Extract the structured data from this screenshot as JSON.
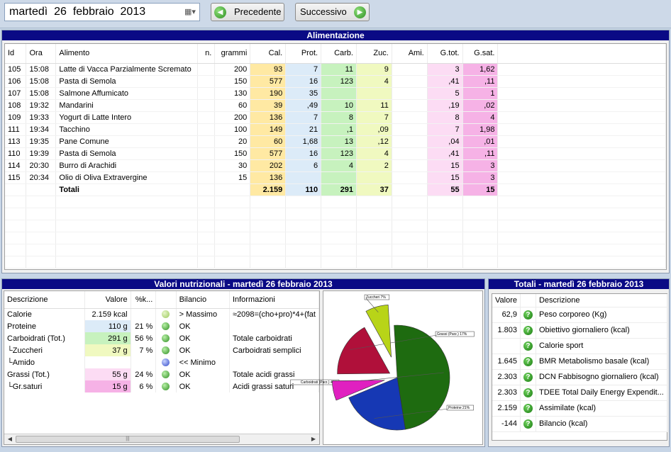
{
  "toolbar": {
    "date": "martedì  26  febbraio  2013",
    "prev_label": "Precedente",
    "next_label": "Successivo",
    "prev_icon": "green-arrow-left-icon",
    "next_icon": "green-arrow-right-icon"
  },
  "alimentazione": {
    "title": "Alimentazione",
    "columns": [
      "Id",
      "Ora",
      "Alimento",
      "n.",
      "grammi",
      "Cal.",
      "Prot.",
      "Carb.",
      "Zuc.",
      "Ami.",
      "G.tot.",
      "G.sat."
    ],
    "rows": [
      [
        "105",
        "15:08",
        "Latte di Vacca Parzialmente Scremato",
        "",
        "200",
        "93",
        "7",
        "11",
        "9",
        "",
        "3",
        "1,62"
      ],
      [
        "106",
        "15:08",
        "Pasta di Semola",
        "",
        "150",
        "577",
        "16",
        "123",
        "4",
        "",
        ",41",
        ",11"
      ],
      [
        "107",
        "15:08",
        "Salmone Affumicato",
        "",
        "130",
        "190",
        "35",
        "",
        "",
        "",
        "5",
        "1"
      ],
      [
        "108",
        "19:32",
        "Mandarini",
        "",
        "60",
        "39",
        ",49",
        "10",
        "11",
        "",
        ",19",
        ",02"
      ],
      [
        "109",
        "19:33",
        "Yogurt di Latte Intero",
        "",
        "200",
        "136",
        "7",
        "8",
        "7",
        "",
        "8",
        "4"
      ],
      [
        "111",
        "19:34",
        "Tacchino",
        "",
        "100",
        "149",
        "21",
        ",1",
        ",09",
        "",
        "7",
        "1,98"
      ],
      [
        "113",
        "19:35",
        "Pane Comune",
        "",
        "20",
        "60",
        "1,68",
        "13",
        ",12",
        "",
        ",04",
        ",01"
      ],
      [
        "110",
        "19:39",
        "Pasta di Semola",
        "",
        "150",
        "577",
        "16",
        "123",
        "4",
        "",
        ",41",
        ",11"
      ],
      [
        "114",
        "20:30",
        "Burro di Arachidi",
        "",
        "30",
        "202",
        "6",
        "4",
        "2",
        "",
        "15",
        "3"
      ],
      [
        "115",
        "20:34",
        "Olio di Oliva Extravergine",
        "",
        "15",
        "136",
        "",
        "",
        "",
        "",
        "15",
        "3"
      ]
    ],
    "totals": [
      "",
      "",
      "Totali",
      "",
      "",
      "2.159",
      "110",
      "291",
      "37",
      "",
      "55",
      "15"
    ]
  },
  "valori": {
    "title": "Valori nutrizionali - martedì 26 febbraio 2013",
    "columns": [
      "Descrizione",
      "Valore",
      "%k...",
      "",
      "Bilancio",
      "Informazioni"
    ],
    "rows": [
      {
        "desc": "Calorie",
        "valore": "2.159 kcal",
        "pct": "",
        "dot": "lgreen",
        "bilancio": "> Massimo",
        "info": "≈2098=(cho+pro)*4+(fat",
        "bg": ""
      },
      {
        "desc": "Proteine",
        "valore": "110 g",
        "pct": "21 %",
        "dot": "green",
        "bilancio": "OK",
        "info": "",
        "bg": "#dcebf8"
      },
      {
        "desc": "Carboidrati (Tot.)",
        "valore": "291 g",
        "pct": "56 %",
        "dot": "green",
        "bilancio": "OK",
        "info": "Totale carboidrati",
        "bg": "#c7f2be"
      },
      {
        "desc": "└Zuccheri",
        "valore": "37 g",
        "pct": "7 %",
        "dot": "green",
        "bilancio": "OK",
        "info": "Carboidrati semplici",
        "bg": "#f0f9c0"
      },
      {
        "desc": "└Amido",
        "valore": "",
        "pct": "",
        "dot": "blue",
        "bilancio": "<< Minimo",
        "info": "",
        "bg": ""
      },
      {
        "desc": "Grassi (Tot.)",
        "valore": "55 g",
        "pct": "24 %",
        "dot": "green",
        "bilancio": "OK",
        "info": "Totale acidi grassi",
        "bg": "#fcdcf4"
      },
      {
        "desc": "└Gr.saturi",
        "valore": "15 g",
        "pct": "6 %",
        "dot": "green",
        "bilancio": "OK",
        "info": "Acidi grassi saturi",
        "bg": "#f6b2e6"
      }
    ],
    "scroll_thumb": "|||"
  },
  "chart_data": {
    "type": "pie",
    "slices": [
      {
        "label": "Carboidrati (Parz.) 48%",
        "value": 48,
        "color": "#1e6b10"
      },
      {
        "label": "Proteine 21%",
        "value": 21,
        "color": "#1638b4"
      },
      {
        "label": "",
        "value": 6,
        "color": "#e020c0"
      },
      {
        "label": "Grassi (Parz.) 17%",
        "value": 17,
        "color": "#b0103a"
      },
      {
        "label": "Zuccheri 7%",
        "value": 7,
        "color": "#b8d418"
      }
    ]
  },
  "totali": {
    "title": "Totali - martedì 26 febbraio 2013",
    "columns": [
      "Valore",
      "",
      "Descrizione"
    ],
    "rows": [
      {
        "valore": "62,9",
        "desc": "Peso corporeo (Kg)"
      },
      {
        "valore": "1.803",
        "desc": "Obiettivo giornaliero (kcal)"
      },
      {
        "valore": "",
        "desc": "Calorie sport"
      },
      {
        "valore": "1.645",
        "desc": "BMR Metabolismo basale (kcal)"
      },
      {
        "valore": "2.303",
        "desc": "DCN Fabbisogno giornaliero (kcal)"
      },
      {
        "valore": "2.303",
        "desc": "TDEE Total Daily Energy Expendit..."
      },
      {
        "valore": "2.159",
        "desc": "Assimilate (kcal)"
      },
      {
        "valore": "-144",
        "desc": "Bilancio (kcal)"
      }
    ],
    "row_icon": "green-question-icon",
    "question_glyph": "?"
  }
}
